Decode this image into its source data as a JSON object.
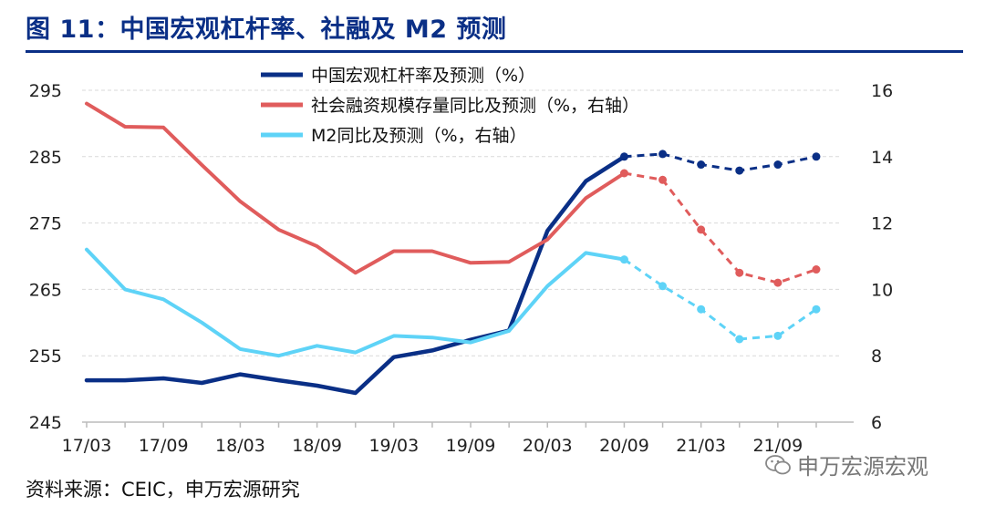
{
  "title": "图 11：中国宏观杠杆率、社融及 M2 预测",
  "source": "资料来源：CEIC，申万宏源研究",
  "watermark": "申万宏源宏观",
  "chart_data": {
    "type": "line",
    "categories": [
      "17/03",
      "17/06",
      "17/09",
      "17/12",
      "18/03",
      "18/06",
      "18/09",
      "18/12",
      "19/03",
      "19/06",
      "19/09",
      "19/12",
      "20/03",
      "20/06",
      "20/09",
      "20/12",
      "21/03",
      "21/06",
      "21/09",
      "21/12"
    ],
    "x_tick_labels": [
      "17/03",
      "17/09",
      "18/03",
      "18/09",
      "19/03",
      "19/09",
      "20/03",
      "20/09",
      "21/03",
      "21/09"
    ],
    "ylim_left": [
      245,
      295
    ],
    "yticks_left": [
      245,
      255,
      265,
      275,
      285,
      295
    ],
    "ylim_right": [
      6,
      16
    ],
    "yticks_right": [
      6,
      8,
      10,
      12,
      14,
      16
    ],
    "legend_position": "top-center",
    "forecast_start": "20/12",
    "series": [
      {
        "name": "中国宏观杠杆率及预测（%）",
        "axis": "left",
        "color": "#0a2f86",
        "values": [
          251.3,
          251.3,
          251.6,
          250.9,
          252.2,
          251.3,
          250.5,
          249.4,
          254.8,
          255.8,
          257.4,
          258.8,
          273.8,
          281.3,
          285.0,
          285.4,
          283.8,
          282.9,
          283.8,
          285.0
        ]
      },
      {
        "name": "社会融资规模存量同比及预测（%，右轴）",
        "axis": "right",
        "color": "#e05c5c",
        "values": [
          15.6,
          14.9,
          14.88,
          13.75,
          12.65,
          11.8,
          11.3,
          10.5,
          11.15,
          11.15,
          10.8,
          10.83,
          11.5,
          12.75,
          13.5,
          13.3,
          11.8,
          10.5,
          10.2,
          10.6
        ]
      },
      {
        "name": "M2同比及预测（%，右轴）",
        "axis": "right",
        "color": "#5ed3f7",
        "values": [
          11.2,
          10.0,
          9.7,
          9.0,
          8.2,
          8.0,
          8.3,
          8.1,
          8.6,
          8.55,
          8.4,
          8.75,
          10.1,
          11.1,
          10.9,
          10.1,
          9.4,
          8.5,
          8.6,
          9.4
        ]
      }
    ]
  }
}
